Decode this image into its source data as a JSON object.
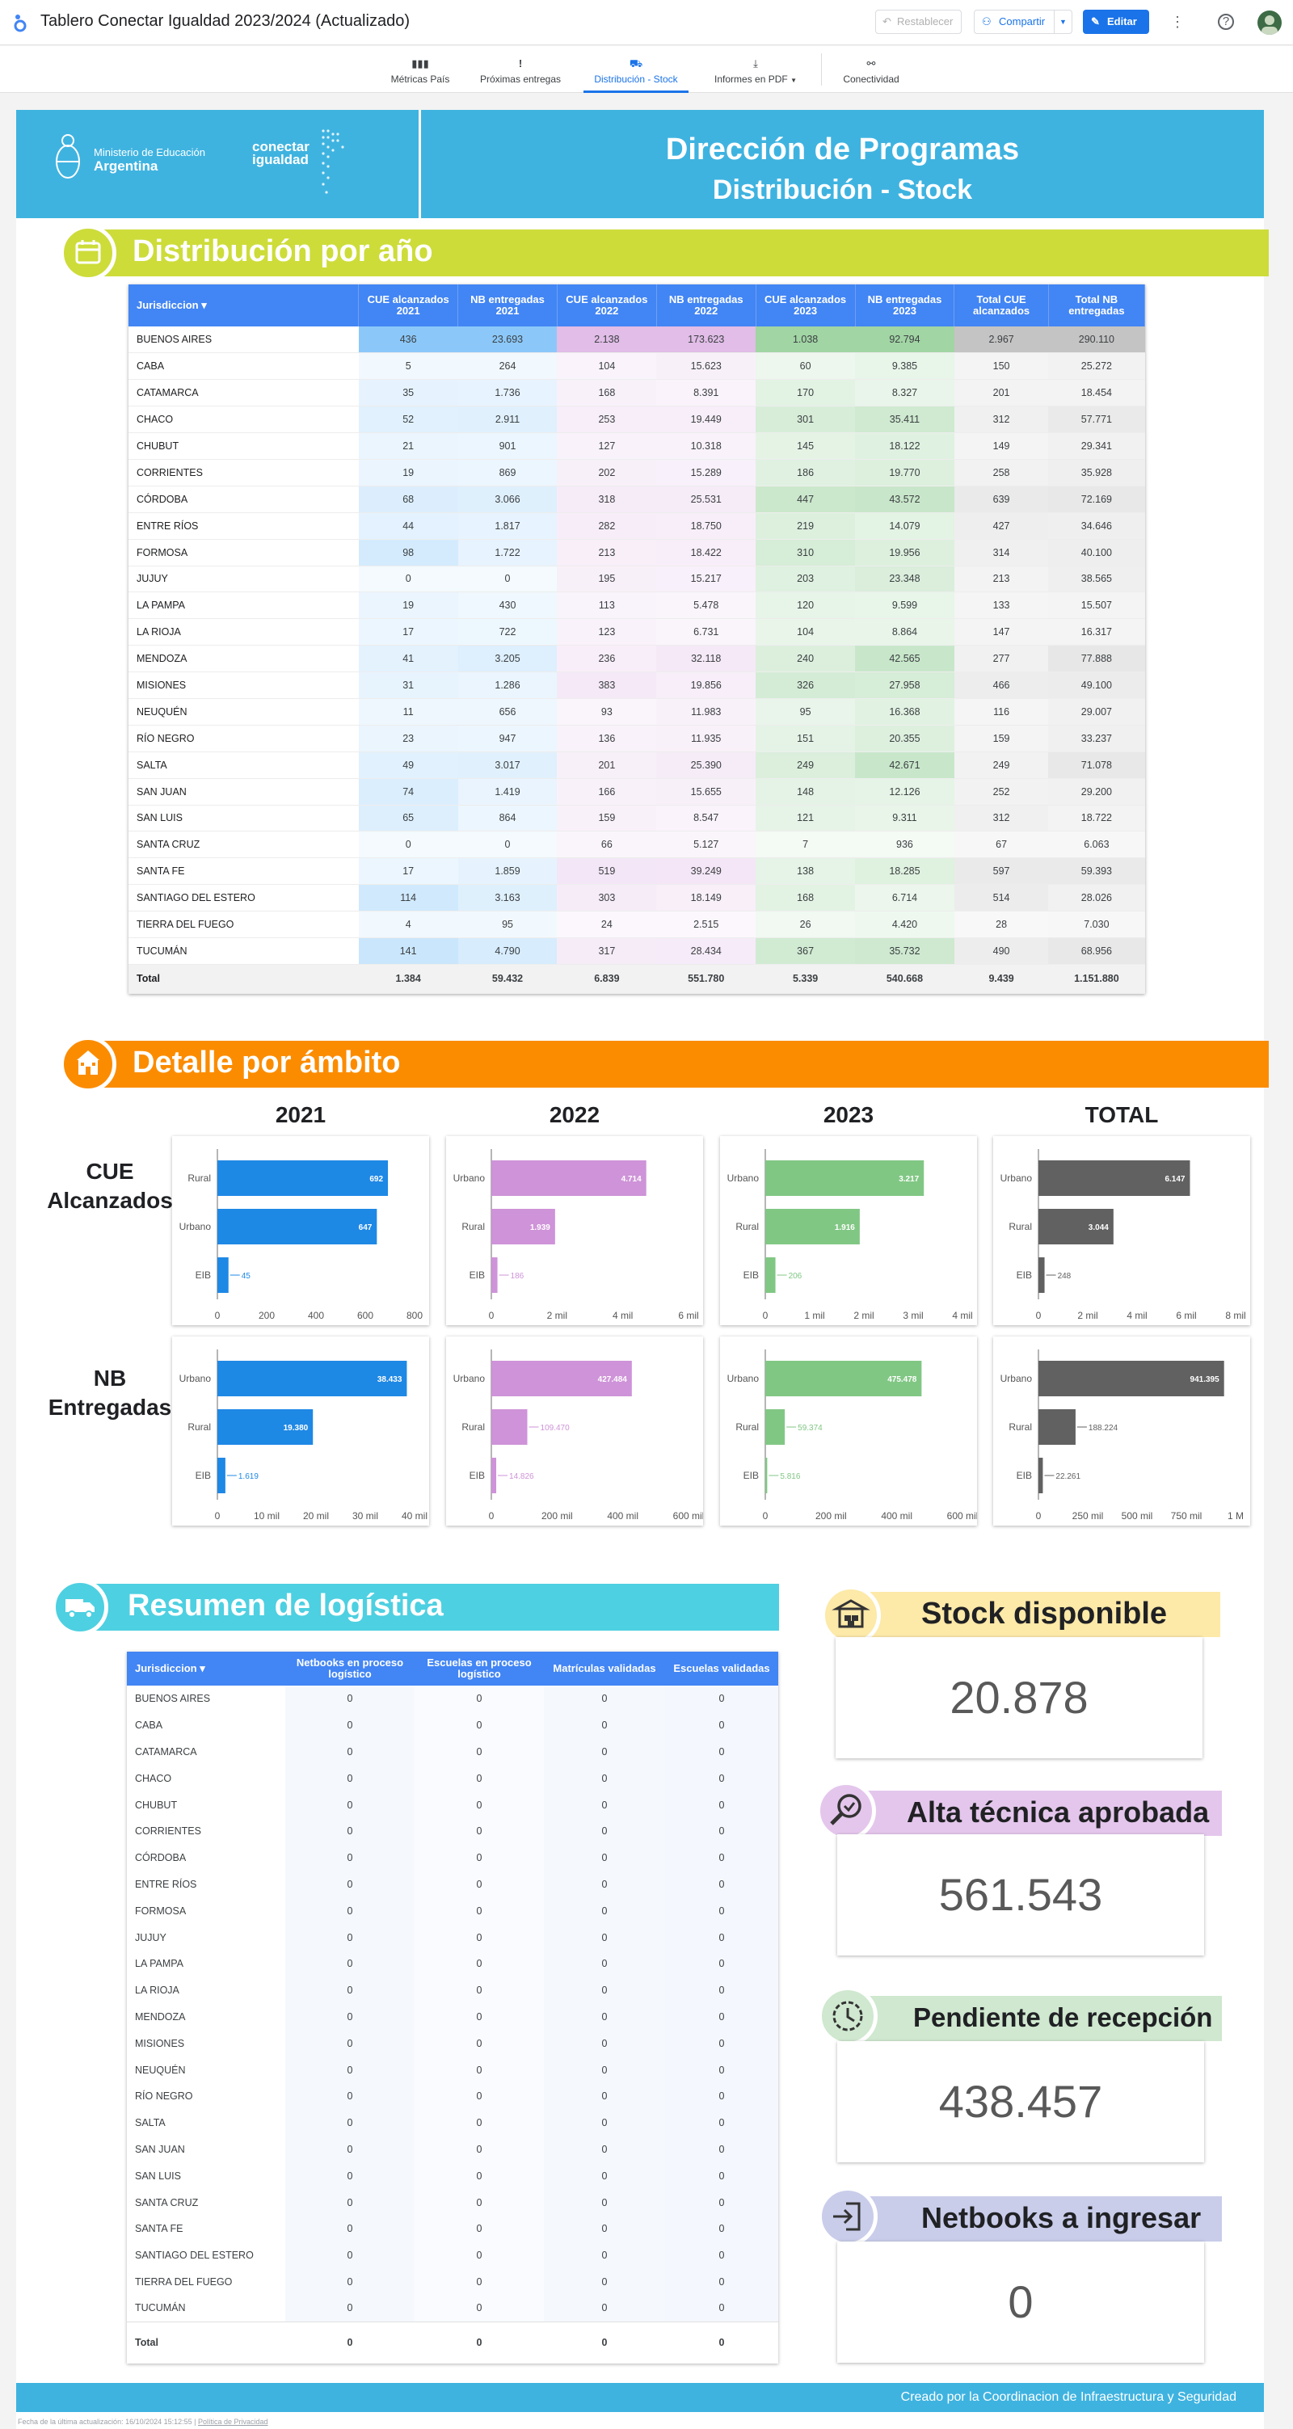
{
  "app": {
    "title": "Tablero Conectar Igualdad 2023/2024 (Actualizado)",
    "reset_label": "Restablecer",
    "share_label": "Compartir",
    "edit_label": "Editar"
  },
  "nav": {
    "tabs": [
      {
        "label": "Métricas País",
        "icon": "bar-chart-icon"
      },
      {
        "label": "Próximas entregas",
        "icon": "exclamation-icon"
      },
      {
        "label": "Distribución - Stock",
        "icon": "truck-icon"
      },
      {
        "label": "Informes en PDF",
        "icon": "download-icon"
      },
      {
        "label": "Conectividad",
        "icon": "network-icon"
      }
    ],
    "active": 2
  },
  "header": {
    "ministry_line1": "Ministerio de Educación",
    "ministry_line2": "Argentina",
    "brand_line1": "conectar",
    "brand_line2": "igualdad",
    "title": "Dirección de Programas",
    "subtitle": "Distribución - Stock"
  },
  "section_dist": {
    "title": "Distribución por año",
    "columns": [
      "Jurisdiccion",
      "CUE alcanzados 2021",
      "NB entregadas 2021",
      "CUE alcanzados 2022",
      "NB entregadas 2022",
      "CUE alcanzados 2023",
      "NB entregadas 2023",
      "Total CUE alcanzados",
      "Total NB entregadas"
    ],
    "rows": [
      [
        "BUENOS AIRES",
        "436",
        "23.693",
        "2.138",
        "173.623",
        "1.038",
        "92.794",
        "2.967",
        "290.110"
      ],
      [
        "CABA",
        "5",
        "264",
        "104",
        "15.623",
        "60",
        "9.385",
        "150",
        "25.272"
      ],
      [
        "CATAMARCA",
        "35",
        "1.736",
        "168",
        "8.391",
        "170",
        "8.327",
        "201",
        "18.454"
      ],
      [
        "CHACO",
        "52",
        "2.911",
        "253",
        "19.449",
        "301",
        "35.411",
        "312",
        "57.771"
      ],
      [
        "CHUBUT",
        "21",
        "901",
        "127",
        "10.318",
        "145",
        "18.122",
        "149",
        "29.341"
      ],
      [
        "CORRIENTES",
        "19",
        "869",
        "202",
        "15.289",
        "186",
        "19.770",
        "258",
        "35.928"
      ],
      [
        "CÓRDOBA",
        "68",
        "3.066",
        "318",
        "25.531",
        "447",
        "43.572",
        "639",
        "72.169"
      ],
      [
        "ENTRE RÍOS",
        "44",
        "1.817",
        "282",
        "18.750",
        "219",
        "14.079",
        "427",
        "34.646"
      ],
      [
        "FORMOSA",
        "98",
        "1.722",
        "213",
        "18.422",
        "310",
        "19.956",
        "314",
        "40.100"
      ],
      [
        "JUJUY",
        "0",
        "0",
        "195",
        "15.217",
        "203",
        "23.348",
        "213",
        "38.565"
      ],
      [
        "LA PAMPA",
        "19",
        "430",
        "113",
        "5.478",
        "120",
        "9.599",
        "133",
        "15.507"
      ],
      [
        "LA RIOJA",
        "17",
        "722",
        "123",
        "6.731",
        "104",
        "8.864",
        "147",
        "16.317"
      ],
      [
        "MENDOZA",
        "41",
        "3.205",
        "236",
        "32.118",
        "240",
        "42.565",
        "277",
        "77.888"
      ],
      [
        "MISIONES",
        "31",
        "1.286",
        "383",
        "19.856",
        "326",
        "27.958",
        "466",
        "49.100"
      ],
      [
        "NEUQUÉN",
        "11",
        "656",
        "93",
        "11.983",
        "95",
        "16.368",
        "116",
        "29.007"
      ],
      [
        "RÍO NEGRO",
        "23",
        "947",
        "136",
        "11.935",
        "151",
        "20.355",
        "159",
        "33.237"
      ],
      [
        "SALTA",
        "49",
        "3.017",
        "201",
        "25.390",
        "249",
        "42.671",
        "249",
        "71.078"
      ],
      [
        "SAN JUAN",
        "74",
        "1.419",
        "166",
        "15.655",
        "148",
        "12.126",
        "252",
        "29.200"
      ],
      [
        "SAN LUIS",
        "65",
        "864",
        "159",
        "8.547",
        "121",
        "9.311",
        "312",
        "18.722"
      ],
      [
        "SANTA CRUZ",
        "0",
        "0",
        "66",
        "5.127",
        "7",
        "936",
        "67",
        "6.063"
      ],
      [
        "SANTA FE",
        "17",
        "1.859",
        "519",
        "39.249",
        "138",
        "18.285",
        "597",
        "59.393"
      ],
      [
        "SANTIAGO DEL ESTERO",
        "114",
        "3.163",
        "303",
        "18.149",
        "168",
        "6.714",
        "514",
        "28.026"
      ],
      [
        "TIERRA DEL FUEGO",
        "4",
        "95",
        "24",
        "2.515",
        "26",
        "4.420",
        "28",
        "7.030"
      ],
      [
        "TUCUMÁN",
        "141",
        "4.790",
        "317",
        "28.434",
        "367",
        "35.732",
        "490",
        "68.956"
      ]
    ],
    "total": [
      "Total",
      "1.384",
      "59.432",
      "6.839",
      "551.780",
      "5.339",
      "540.668",
      "9.439",
      "1.151.880"
    ]
  },
  "section_ambito": {
    "title": "Detalle por ámbito",
    "col_headers": [
      "2021",
      "2022",
      "2023",
      "TOTAL"
    ],
    "row_headers": [
      "CUE Alcanzados",
      "NB Entregadas"
    ]
  },
  "chart_data": [
    {
      "type": "bar",
      "orientation": "horizontal",
      "id": "cue-2021",
      "color": "#1e88e5",
      "categories": [
        "Rural",
        "Urbano",
        "EIB"
      ],
      "values": [
        692,
        647,
        45
      ],
      "labels": [
        "692",
        "647",
        "45"
      ],
      "xticks": [
        "0",
        "200",
        "400",
        "600",
        "800"
      ],
      "xlim": [
        0,
        800
      ]
    },
    {
      "type": "bar",
      "orientation": "horizontal",
      "id": "cue-2022",
      "color": "#ce93d8",
      "categories": [
        "Urbano",
        "Rural",
        "EIB"
      ],
      "values": [
        4714,
        1939,
        186
      ],
      "labels": [
        "4.714",
        "1.939",
        "186"
      ],
      "xticks": [
        "0",
        "2 mil",
        "4 mil",
        "6 mil"
      ],
      "xlim": [
        0,
        6000
      ]
    },
    {
      "type": "bar",
      "orientation": "horizontal",
      "id": "cue-2023",
      "color": "#81c784",
      "categories": [
        "Urbano",
        "Rural",
        "EIB"
      ],
      "values": [
        3217,
        1916,
        206
      ],
      "labels": [
        "3.217",
        "1.916",
        "206"
      ],
      "xticks": [
        "0",
        "1 mil",
        "2 mil",
        "3 mil",
        "4 mil"
      ],
      "xlim": [
        0,
        4000
      ]
    },
    {
      "type": "bar",
      "orientation": "horizontal",
      "id": "cue-total",
      "color": "#616161",
      "categories": [
        "Urbano",
        "Rural",
        "EIB"
      ],
      "values": [
        6147,
        3044,
        248
      ],
      "labels": [
        "6.147",
        "3.044",
        "248"
      ],
      "xticks": [
        "0",
        "2 mil",
        "4 mil",
        "6 mil",
        "8 mil"
      ],
      "xlim": [
        0,
        8000
      ]
    },
    {
      "type": "bar",
      "orientation": "horizontal",
      "id": "nb-2021",
      "color": "#1e88e5",
      "categories": [
        "Urbano",
        "Rural",
        "EIB"
      ],
      "values": [
        38433,
        19380,
        1619
      ],
      "labels": [
        "38.433",
        "19.380",
        "1.619"
      ],
      "xticks": [
        "0",
        "10 mil",
        "20 mil",
        "30 mil",
        "40 mil"
      ],
      "xlim": [
        0,
        40000
      ]
    },
    {
      "type": "bar",
      "orientation": "horizontal",
      "id": "nb-2022",
      "color": "#ce93d8",
      "categories": [
        "Urbano",
        "Rural",
        "EIB"
      ],
      "values": [
        427484,
        109470,
        14826
      ],
      "labels": [
        "427.484",
        "109.470",
        "14.826"
      ],
      "xticks": [
        "0",
        "200 mil",
        "400 mil",
        "600 mil"
      ],
      "xlim": [
        0,
        600000
      ]
    },
    {
      "type": "bar",
      "orientation": "horizontal",
      "id": "nb-2023",
      "color": "#81c784",
      "categories": [
        "Urbano",
        "Rural",
        "EIB"
      ],
      "values": [
        475478,
        59374,
        5816
      ],
      "labels": [
        "475.478",
        "59.374",
        "5.816"
      ],
      "xticks": [
        "0",
        "200 mil",
        "400 mil",
        "600 mil"
      ],
      "xlim": [
        0,
        600000
      ]
    },
    {
      "type": "bar",
      "orientation": "horizontal",
      "id": "nb-total",
      "color": "#616161",
      "categories": [
        "Urbano",
        "Rural",
        "EIB"
      ],
      "values": [
        941395,
        188224,
        22261
      ],
      "labels": [
        "941.395",
        "188.224",
        "22.261"
      ],
      "xticks": [
        "0",
        "250 mil",
        "500 mil",
        "750 mil",
        "1 M"
      ],
      "xlim": [
        0,
        1000000
      ]
    }
  ],
  "section_logistica": {
    "title": "Resumen de logística",
    "columns": [
      "Jurisdiccion",
      "Netbooks en proceso logístico",
      "Escuelas en proceso logístico",
      "Matrículas validadas",
      "Escuelas validadas"
    ],
    "rows": [
      [
        "BUENOS AIRES",
        "0",
        "0",
        "0",
        "0"
      ],
      [
        "CABA",
        "0",
        "0",
        "0",
        "0"
      ],
      [
        "CATAMARCA",
        "0",
        "0",
        "0",
        "0"
      ],
      [
        "CHACO",
        "0",
        "0",
        "0",
        "0"
      ],
      [
        "CHUBUT",
        "0",
        "0",
        "0",
        "0"
      ],
      [
        "CORRIENTES",
        "0",
        "0",
        "0",
        "0"
      ],
      [
        "CÓRDOBA",
        "0",
        "0",
        "0",
        "0"
      ],
      [
        "ENTRE RÍOS",
        "0",
        "0",
        "0",
        "0"
      ],
      [
        "FORMOSA",
        "0",
        "0",
        "0",
        "0"
      ],
      [
        "JUJUY",
        "0",
        "0",
        "0",
        "0"
      ],
      [
        "LA PAMPA",
        "0",
        "0",
        "0",
        "0"
      ],
      [
        "LA RIOJA",
        "0",
        "0",
        "0",
        "0"
      ],
      [
        "MENDOZA",
        "0",
        "0",
        "0",
        "0"
      ],
      [
        "MISIONES",
        "0",
        "0",
        "0",
        "0"
      ],
      [
        "NEUQUÉN",
        "0",
        "0",
        "0",
        "0"
      ],
      [
        "RÍO NEGRO",
        "0",
        "0",
        "0",
        "0"
      ],
      [
        "SALTA",
        "0",
        "0",
        "0",
        "0"
      ],
      [
        "SAN JUAN",
        "0",
        "0",
        "0",
        "0"
      ],
      [
        "SAN LUIS",
        "0",
        "0",
        "0",
        "0"
      ],
      [
        "SANTA CRUZ",
        "0",
        "0",
        "0",
        "0"
      ],
      [
        "SANTA FE",
        "0",
        "0",
        "0",
        "0"
      ],
      [
        "SANTIAGO DEL ESTERO",
        "0",
        "0",
        "0",
        "0"
      ],
      [
        "TIERRA DEL FUEGO",
        "0",
        "0",
        "0",
        "0"
      ],
      [
        "TUCUMÁN",
        "0",
        "0",
        "0",
        "0"
      ]
    ],
    "total": [
      "Total",
      "0",
      "0",
      "0",
      "0"
    ]
  },
  "cards": [
    {
      "title": "Stock disponible",
      "value": "20.878",
      "color": "#fde9a8",
      "icon": "warehouse-icon"
    },
    {
      "title": "Alta técnica aprobada",
      "value": "561.543",
      "color": "#e4c6ec",
      "icon": "magnifier-check-icon"
    },
    {
      "title": "Pendiente de recepción",
      "value": "438.457",
      "color": "#cfe8cf",
      "icon": "clock-icon"
    },
    {
      "title": "Netbooks a ingresar",
      "value": "0",
      "color": "#c9cdea",
      "icon": "login-icon"
    }
  ],
  "footer": {
    "credit": "Creado por la Coordinacion de Infraestructura y Seguridad",
    "updated": "Fecha de la última actualización: 16/10/2024 15:12:55",
    "privacy": "Política de Privacidad"
  }
}
